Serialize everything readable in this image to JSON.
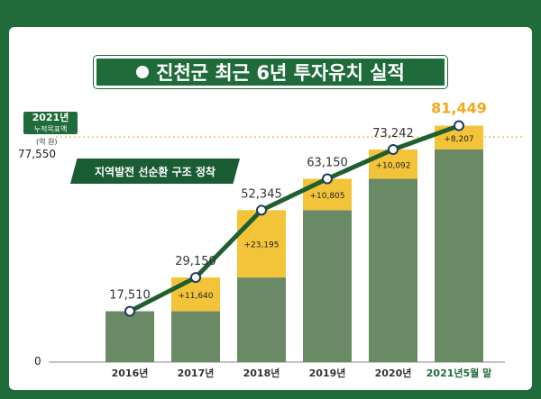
{
  "title": "진천군 최근 6년 투자유치 실적",
  "y_axis": {
    "target_year": "2021년",
    "target_label": "누적목표액",
    "unit": "(억 원)",
    "target_value_label": "77,550",
    "zero_label": "0"
  },
  "annotation": "지역발전 선순환 구조 정착",
  "colors": {
    "background": "#1f6b3a",
    "bar_base": "#6a8a66",
    "bar_increment": "#f3c43a",
    "line": "#1f5f2e",
    "highlight_text": "#f0a81e",
    "target_line": "#e8b93a"
  },
  "chart_data": {
    "type": "bar",
    "categories": [
      "2016년",
      "2017년",
      "2018년",
      "2019년",
      "2020년",
      "2021년5월 말"
    ],
    "series": [
      {
        "values": [
          17510,
          17510,
          29150,
          52345,
          63150,
          73242
        ]
      },
      {
        "values": [
          0,
          11640,
          23195,
          10805,
          10092,
          8207
        ]
      }
    ],
    "totals": [
      17510,
      29150,
      52345,
      63150,
      73242,
      81449
    ],
    "total_labels": [
      "17,510",
      "29,150",
      "52,345",
      "63,150",
      "73,242",
      "81,449"
    ],
    "increment_labels": [
      "",
      "+11,640",
      "+23,195",
      "+10,805",
      "+10,092",
      "+8,207"
    ],
    "target": 77550,
    "ylim": [
      0,
      90000
    ]
  }
}
